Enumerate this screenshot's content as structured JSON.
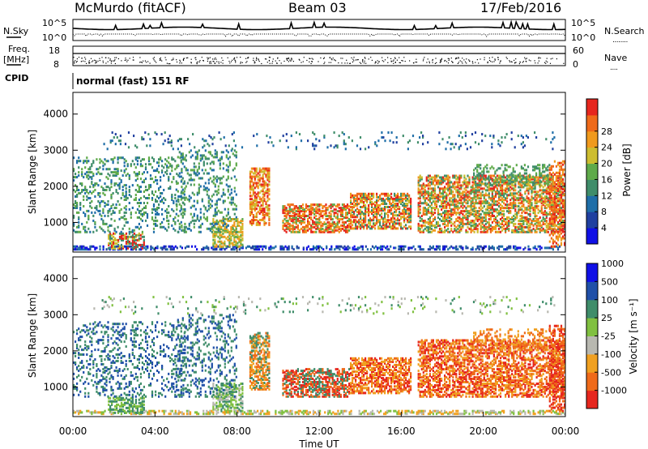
{
  "header": {
    "station": "McMurdo (fitACF)",
    "beam": "Beam 03",
    "date": "17/Feb/2016"
  },
  "panels": {
    "nsky": {
      "label": "N.Sky",
      "right_label": "N.Search",
      "right_label_marker": "........",
      "ticks_left": [
        "10^5",
        "10^0"
      ],
      "ticks_right": [
        "10^5",
        "10^0"
      ]
    },
    "freq": {
      "label_line1": "Freq.",
      "label_line2": "[MHz]",
      "right_label": "Nave",
      "right_label_marker": "....",
      "ticks_left": [
        "18",
        "8"
      ],
      "ticks_right": [
        "60",
        "0"
      ]
    },
    "cpid": {
      "label": "CPID",
      "text": "normal (fast) 151 RF"
    }
  },
  "x_axis": {
    "label": "Time UT",
    "ticks": [
      "00:00",
      "04:00",
      "08:00",
      "12:00",
      "16:00",
      "20:00",
      "00:00"
    ]
  },
  "colors": {
    "power": [
      "#1010e6",
      "#2040a0",
      "#1f6ea8",
      "#3f8d6a",
      "#5faa4a",
      "#cdbd30",
      "#f09a1e",
      "#ef6a1a",
      "#e6261e"
    ],
    "velocity": [
      "#e6261e",
      "#ef6a1a",
      "#f0a020",
      "#b8b8b0",
      "#80c040",
      "#3f8d6a",
      "#2050a8",
      "#1010e6"
    ]
  },
  "chart_data": [
    {
      "type": "heatmap",
      "name": "power",
      "xlabel": "Time UT",
      "ylabel": "Slant Range [km]",
      "xlim": [
        0,
        24
      ],
      "ylim": [
        180,
        4600
      ],
      "yticks": [
        "1000",
        "2000",
        "3000",
        "4000"
      ],
      "colorbar": {
        "label": "Power [dB]",
        "ticks": [
          "4",
          "8",
          "12",
          "16",
          "20",
          "24",
          "28"
        ],
        "range": [
          0,
          32
        ]
      }
    },
    {
      "type": "heatmap",
      "name": "velocity",
      "xlabel": "Time UT",
      "ylabel": "Slant Range [km]",
      "xlim": [
        0,
        24
      ],
      "ylim": [
        180,
        4600
      ],
      "yticks": [
        "1000",
        "2000",
        "3000",
        "4000"
      ],
      "colorbar": {
        "label": "Velocity [m s⁻¹]",
        "ticks": [
          "-1000",
          "-500",
          "-100",
          "-25",
          "25",
          "100",
          "500",
          "1000"
        ],
        "range": [
          -1250,
          1250
        ]
      }
    }
  ]
}
